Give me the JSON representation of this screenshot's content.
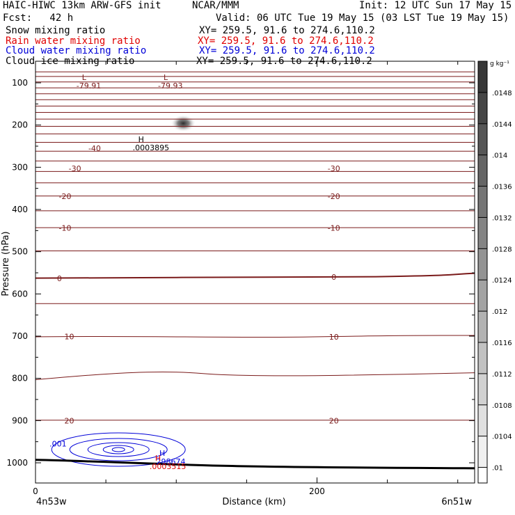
{
  "header": {
    "model": "HAIC-HIWC 13km ARW-GFS init",
    "org": "NCAR/MMM",
    "init": "Init: 12 UTC Sun 17 May 15",
    "fcst": "Fcst:   42 h",
    "valid": "Valid: 06 UTC Tue 19 May 15 (03 LST Tue 19 May 15)",
    "fields": [
      {
        "label": "Snow mixing ratio",
        "xy": "XY= 259.5, 91.6 to 274.6,110.2"
      },
      {
        "label": "Rain water mixing ratio",
        "xy": "XY= 259.5, 91.6 to 274.6,110.2"
      },
      {
        "label": "Cloud water mixing ratio",
        "xy": "XY= 259.5, 91.6 to 274.6,110.2"
      },
      {
        "label": "Cloud ice mixing ratio",
        "xy": "XY= 259.5, 91.6 to 274.6,110.2"
      }
    ]
  },
  "colors": {
    "temp": "#7a1a1a",
    "rain": "#e00000",
    "cloud": "#0000d8",
    "ground": "#000000"
  },
  "chart_data": {
    "type": "contour",
    "xlabel": "Distance (km)",
    "ylabel": "Pressure (hPa)",
    "xlim": [
      0,
      312
    ],
    "ylim": [
      1050,
      70
    ],
    "x_ticks": [
      0,
      200
    ],
    "y_ticks": [
      100,
      200,
      300,
      400,
      500,
      600,
      700,
      800,
      900,
      1000
    ],
    "x_endpoints": [
      "4n53w",
      "6n51w"
    ],
    "colorbar": {
      "unit": "g kg⁻¹",
      "ticks": [
        ".01",
        ".0104",
        ".0108",
        ".0112",
        ".0116",
        ".012",
        ".0124",
        ".0128",
        ".0132",
        ".0136",
        ".014",
        ".0144",
        ".0148"
      ]
    },
    "temperature_levels_p": [
      74,
      85,
      98,
      112,
      126,
      140,
      155,
      170,
      186,
      203,
      221,
      241,
      262,
      285,
      310,
      337,
      368,
      403,
      443,
      498,
      561,
      623,
      700,
      790,
      899
    ],
    "temperature_labels": [
      {
        "text": "-40",
        "x": 42,
        "p": 255
      },
      {
        "text": "-30",
        "x": 28,
        "p": 303
      },
      {
        "text": "-30",
        "x": 212,
        "p": 303
      },
      {
        "text": "-20",
        "x": 21,
        "p": 369
      },
      {
        "text": "-20",
        "x": 212,
        "p": 369
      },
      {
        "text": "-10",
        "x": 21,
        "p": 444
      },
      {
        "text": "-10",
        "x": 212,
        "p": 444
      },
      {
        "text": "0",
        "x": 17,
        "p": 563
      },
      {
        "text": "0",
        "x": 212,
        "p": 560
      },
      {
        "text": "10",
        "x": 24,
        "p": 701
      },
      {
        "text": "10",
        "x": 212,
        "p": 702
      },
      {
        "text": "20",
        "x": 24,
        "p": 900
      },
      {
        "text": "20",
        "x": 212,
        "p": 900
      }
    ],
    "extrema": [
      {
        "type": "L",
        "value": "-79.91",
        "x": 33,
        "p": 107,
        "color": "temp"
      },
      {
        "type": "L",
        "value": "-79.93",
        "x": 91,
        "p": 107,
        "color": "temp"
      },
      {
        "type": "H",
        "value": ".0003895",
        "x": 73,
        "p": 253,
        "color": "ground"
      },
      {
        "type": "H",
        "value": ".298674",
        "x": 88,
        "p": 997,
        "color": "cloud"
      },
      {
        "type": "H",
        "value": ".0003515",
        "x": 85,
        "p": 1008,
        "color": "rain"
      }
    ],
    "cloud_water_label": {
      "text": ".001",
      "x": 16,
      "p": 955
    },
    "snow_max": {
      "x": 105,
      "p": 196
    }
  }
}
